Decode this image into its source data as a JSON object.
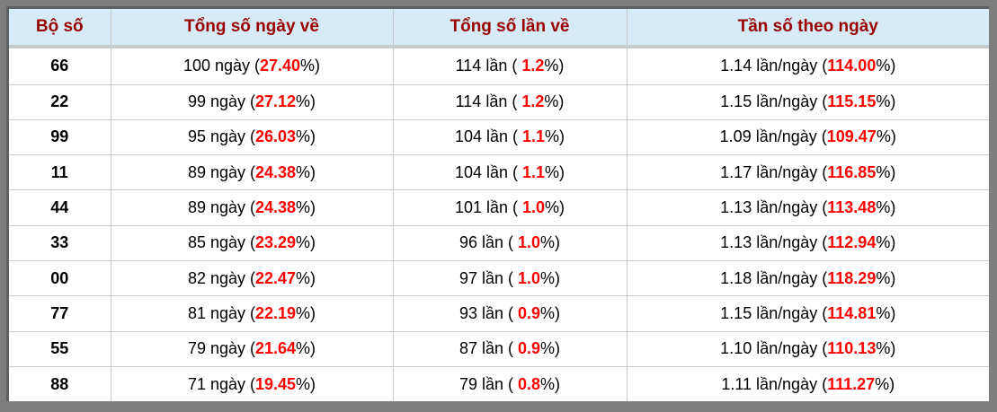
{
  "colors": {
    "frame": "#7e7e7e",
    "header_bg": "#d7ebf7",
    "header_text": "#990000",
    "highlight": "#ff0000",
    "grid_line": "#c9c9c9"
  },
  "table": {
    "headers": [
      "Bộ số",
      "Tổng số ngày về",
      "Tổng số lần về",
      "Tần số theo ngày"
    ],
    "rows": [
      {
        "cells": [
          {
            "segments": [
              {
                "t": "66",
                "s": "bold"
              }
            ]
          },
          {
            "segments": [
              {
                "t": "100 ngày ("
              },
              {
                "t": "27.40",
                "s": "red"
              },
              {
                "t": "%)"
              }
            ]
          },
          {
            "segments": [
              {
                "t": "114 lần ( "
              },
              {
                "t": "1.2",
                "s": "red"
              },
              {
                "t": "%)"
              }
            ]
          },
          {
            "segments": [
              {
                "t": "1.14 lần/ngày ("
              },
              {
                "t": "114.00",
                "s": "red"
              },
              {
                "t": "%)"
              }
            ]
          }
        ]
      },
      {
        "cells": [
          {
            "segments": [
              {
                "t": "22",
                "s": "bold"
              }
            ]
          },
          {
            "segments": [
              {
                "t": "99 ngày ("
              },
              {
                "t": "27.12",
                "s": "red"
              },
              {
                "t": "%)"
              }
            ]
          },
          {
            "segments": [
              {
                "t": "114 lần ( "
              },
              {
                "t": "1.2",
                "s": "red"
              },
              {
                "t": "%)"
              }
            ]
          },
          {
            "segments": [
              {
                "t": "1.15 lần/ngày ("
              },
              {
                "t": "115.15",
                "s": "red"
              },
              {
                "t": "%)"
              }
            ]
          }
        ]
      },
      {
        "cells": [
          {
            "segments": [
              {
                "t": "99",
                "s": "bold"
              }
            ]
          },
          {
            "segments": [
              {
                "t": "95 ngày ("
              },
              {
                "t": "26.03",
                "s": "red"
              },
              {
                "t": "%)"
              }
            ]
          },
          {
            "segments": [
              {
                "t": "104 lần ( "
              },
              {
                "t": "1.1",
                "s": "red"
              },
              {
                "t": "%)"
              }
            ]
          },
          {
            "segments": [
              {
                "t": "1.09 lần/ngày ("
              },
              {
                "t": "109.47",
                "s": "red"
              },
              {
                "t": "%)"
              }
            ]
          }
        ]
      },
      {
        "cells": [
          {
            "segments": [
              {
                "t": "11",
                "s": "bold"
              }
            ]
          },
          {
            "segments": [
              {
                "t": "89 ngày ("
              },
              {
                "t": "24.38",
                "s": "red"
              },
              {
                "t": "%)"
              }
            ]
          },
          {
            "segments": [
              {
                "t": "104 lần ( "
              },
              {
                "t": "1.1",
                "s": "red"
              },
              {
                "t": "%)"
              }
            ]
          },
          {
            "segments": [
              {
                "t": "1.17 lần/ngày ("
              },
              {
                "t": "116.85",
                "s": "red"
              },
              {
                "t": "%)"
              }
            ]
          }
        ]
      },
      {
        "cells": [
          {
            "segments": [
              {
                "t": "44",
                "s": "bold"
              }
            ]
          },
          {
            "segments": [
              {
                "t": "89 ngày ("
              },
              {
                "t": "24.38",
                "s": "red"
              },
              {
                "t": "%)"
              }
            ]
          },
          {
            "segments": [
              {
                "t": "101 lần ( "
              },
              {
                "t": "1.0",
                "s": "red"
              },
              {
                "t": "%)"
              }
            ]
          },
          {
            "segments": [
              {
                "t": "1.13 lần/ngày ("
              },
              {
                "t": "113.48",
                "s": "red"
              },
              {
                "t": "%)"
              }
            ]
          }
        ]
      },
      {
        "cells": [
          {
            "segments": [
              {
                "t": "33",
                "s": "bold"
              }
            ]
          },
          {
            "segments": [
              {
                "t": "85 ngày ("
              },
              {
                "t": "23.29",
                "s": "red"
              },
              {
                "t": "%)"
              }
            ]
          },
          {
            "segments": [
              {
                "t": "96 lần ( "
              },
              {
                "t": "1.0",
                "s": "red"
              },
              {
                "t": "%)"
              }
            ]
          },
          {
            "segments": [
              {
                "t": "1.13 lần/ngày ("
              },
              {
                "t": "112.94",
                "s": "red"
              },
              {
                "t": "%)"
              }
            ]
          }
        ]
      },
      {
        "cells": [
          {
            "segments": [
              {
                "t": "00",
                "s": "bold"
              }
            ]
          },
          {
            "segments": [
              {
                "t": "82 ngày ("
              },
              {
                "t": "22.47",
                "s": "red"
              },
              {
                "t": "%)"
              }
            ]
          },
          {
            "segments": [
              {
                "t": "97 lần ( "
              },
              {
                "t": "1.0",
                "s": "red"
              },
              {
                "t": "%)"
              }
            ]
          },
          {
            "segments": [
              {
                "t": "1.18 lần/ngày ("
              },
              {
                "t": "118.29",
                "s": "red"
              },
              {
                "t": "%)"
              }
            ]
          }
        ]
      },
      {
        "cells": [
          {
            "segments": [
              {
                "t": "77",
                "s": "bold"
              }
            ]
          },
          {
            "segments": [
              {
                "t": "81 ngày ("
              },
              {
                "t": "22.19",
                "s": "red"
              },
              {
                "t": "%)"
              }
            ]
          },
          {
            "segments": [
              {
                "t": "93 lần ( "
              },
              {
                "t": "0.9",
                "s": "red"
              },
              {
                "t": "%)"
              }
            ]
          },
          {
            "segments": [
              {
                "t": "1.15 lần/ngày ("
              },
              {
                "t": "114.81",
                "s": "red"
              },
              {
                "t": "%)"
              }
            ]
          }
        ]
      },
      {
        "cells": [
          {
            "segments": [
              {
                "t": "55",
                "s": "bold"
              }
            ]
          },
          {
            "segments": [
              {
                "t": "79 ngày ("
              },
              {
                "t": "21.64",
                "s": "red"
              },
              {
                "t": "%)"
              }
            ]
          },
          {
            "segments": [
              {
                "t": "87 lần ( "
              },
              {
                "t": "0.9",
                "s": "red"
              },
              {
                "t": "%)"
              }
            ]
          },
          {
            "segments": [
              {
                "t": "1.10 lần/ngày ("
              },
              {
                "t": "110.13",
                "s": "red"
              },
              {
                "t": "%)"
              }
            ]
          }
        ]
      },
      {
        "cells": [
          {
            "segments": [
              {
                "t": "88",
                "s": "bold"
              }
            ]
          },
          {
            "segments": [
              {
                "t": "71 ngày ("
              },
              {
                "t": "19.45",
                "s": "red"
              },
              {
                "t": "%)"
              }
            ]
          },
          {
            "segments": [
              {
                "t": "79 lần ( "
              },
              {
                "t": "0.8",
                "s": "red"
              },
              {
                "t": "%)"
              }
            ]
          },
          {
            "segments": [
              {
                "t": "1.11 lần/ngày ("
              },
              {
                "t": "111.27",
                "s": "red"
              },
              {
                "t": "%)"
              }
            ]
          }
        ]
      }
    ]
  },
  "chart_data": {
    "type": "table",
    "title": "",
    "columns": [
      "Bộ số",
      "Tổng số ngày về",
      "Tổng số lần về",
      "Tần số theo ngày"
    ],
    "rows": [
      [
        "66",
        "100 ngày (27.40%)",
        "114 lần ( 1.2%)",
        "1.14 lần/ngày (114.00%)"
      ],
      [
        "22",
        "99 ngày (27.12%)",
        "114 lần ( 1.2%)",
        "1.15 lần/ngày (115.15%)"
      ],
      [
        "99",
        "95 ngày (26.03%)",
        "104 lần ( 1.1%)",
        "1.09 lần/ngày (109.47%)"
      ],
      [
        "11",
        "89 ngày (24.38%)",
        "104 lần ( 1.1%)",
        "1.17 lần/ngày (116.85%)"
      ],
      [
        "44",
        "89 ngày (24.38%)",
        "101 lần ( 1.0%)",
        "1.13 lần/ngày (113.48%)"
      ],
      [
        "33",
        "85 ngày (23.29%)",
        "96 lần ( 1.0%)",
        "1.13 lần/ngày (112.94%)"
      ],
      [
        "00",
        "82 ngày (22.47%)",
        "97 lần ( 1.0%)",
        "1.18 lần/ngày (118.29%)"
      ],
      [
        "77",
        "81 ngày (22.19%)",
        "93 lần ( 0.9%)",
        "1.15 lần/ngày (114.81%)"
      ],
      [
        "55",
        "79 ngày (21.64%)",
        "87 lần ( 0.9%)",
        "1.10 lần/ngày (110.13%)"
      ],
      [
        "88",
        "71 ngày (19.45%)",
        "79 lần ( 0.8%)",
        "1.11 lần/ngày (111.27%)"
      ]
    ]
  }
}
